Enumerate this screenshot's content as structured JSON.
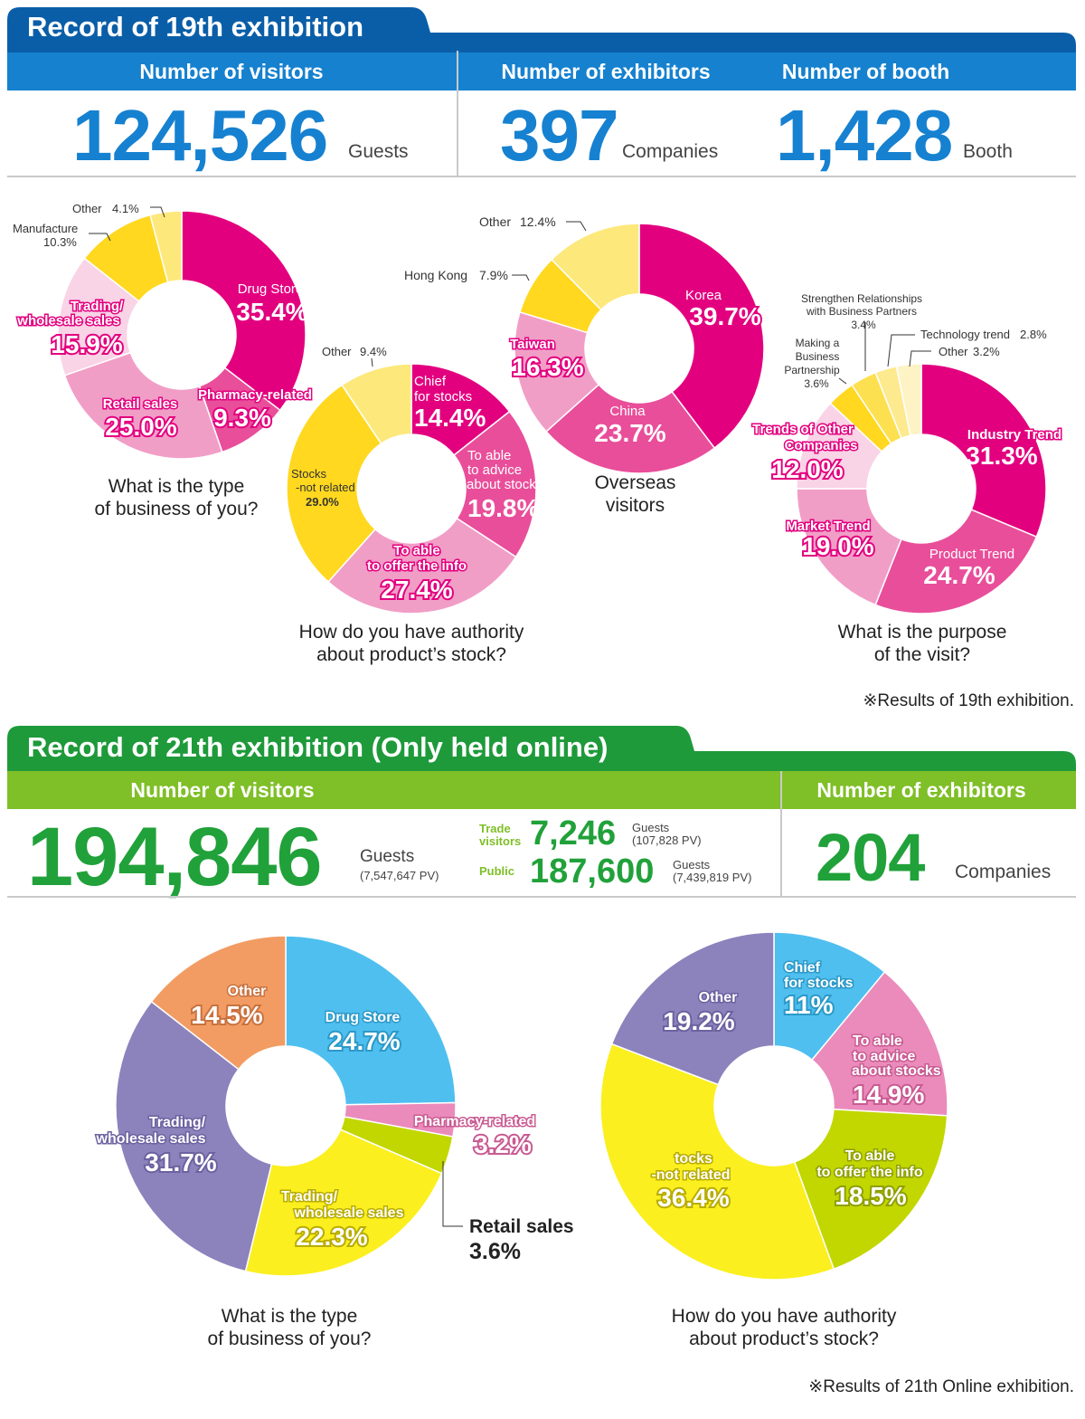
{
  "record19": {
    "title": "Record of 19th exhibition",
    "visitors_header": "Number of visitors",
    "exhibitors_header": "Number of exhibitors",
    "booth_header": "Number of booth",
    "visitors_value": "124,526",
    "visitors_unit": "Guests",
    "exhibitors_value": "397",
    "exhibitors_unit": "Companies",
    "booth_value": "1,428",
    "booth_unit": "Booth",
    "note": "※Results of 19th exhibition."
  },
  "record21": {
    "title": "Record of 21th exhibition (Only held online)",
    "visitors_header": "Number of visitors",
    "exhibitors_header": "Number of exhibitors",
    "visitors_value": "194,846",
    "visitors_unit": "Guests",
    "visitors_pv": "(7,547,647 PV)",
    "trade_label_1": "Trade",
    "trade_label_2": "visitors",
    "trade_value": "7,246",
    "trade_unit": "Guests",
    "trade_pv": "(107,828 PV)",
    "public_label": "Public",
    "public_value": "187,600",
    "public_unit": "Guests",
    "public_pv": "(7,439,819 PV)",
    "exhibitors_value": "204",
    "exhibitors_unit": "Companies",
    "note": "※Results of 21th Online exhibition."
  },
  "colors": {
    "blue_dark": "#0a5ea8",
    "blue": "#1581cf",
    "green_dark": "#1e9a3a",
    "green": "#7fbf27",
    "num_blue": "#1681d0",
    "num_green": "#21a13a"
  },
  "chart_data": [
    {
      "type": "pie",
      "id": "business19",
      "title": "What is the type of business of you?",
      "slices": [
        {
          "label": "Drug Store",
          "value": 35.4,
          "pct": "35.4%",
          "color": "#e3007f"
        },
        {
          "label": "Pharmacy-related",
          "value": 9.3,
          "pct": "9.3%",
          "color": "#e94e9a"
        },
        {
          "label": "Retail sales",
          "value": 25.0,
          "pct": "25.0%",
          "color": "#f19ec7"
        },
        {
          "label": "Trading/ wholesale sales",
          "value": 15.9,
          "pct": "15.9%",
          "color": "#f9d3e6"
        },
        {
          "label": "Manufacture",
          "value": 10.3,
          "pct": "10.3%",
          "color": "#ffd81f"
        },
        {
          "label": "Other",
          "value": 4.1,
          "pct": "4.1%",
          "color": "#fde87b"
        }
      ]
    },
    {
      "type": "pie",
      "id": "authority19",
      "title": "How do you have authority about product’s stock?",
      "slices": [
        {
          "label": "Chief for stocks",
          "value": 14.4,
          "pct": "14.4%",
          "color": "#e3007f"
        },
        {
          "label": "To able to advice about stocks",
          "value": 19.8,
          "pct": "19.8%",
          "color": "#e94e9a"
        },
        {
          "label": "To able to offer the info",
          "value": 27.4,
          "pct": "27.4%",
          "color": "#f19ec7"
        },
        {
          "label": "Stocks -not related",
          "value": 29.0,
          "pct": "29.0%",
          "color": "#ffd81f"
        },
        {
          "label": "Other",
          "value": 9.4,
          "pct": "9.4%",
          "color": "#fde87b"
        }
      ]
    },
    {
      "type": "pie",
      "id": "overseas19",
      "title": "Overseas visitors",
      "slices": [
        {
          "label": "Korea",
          "value": 39.7,
          "pct": "39.7%",
          "color": "#e3007f"
        },
        {
          "label": "China",
          "value": 23.7,
          "pct": "23.7%",
          "color": "#e94e9a"
        },
        {
          "label": "Taiwan",
          "value": 16.3,
          "pct": "16.3%",
          "color": "#f19ec7"
        },
        {
          "label": "Hong Kong",
          "value": 7.9,
          "pct": "7.9%",
          "color": "#ffd81f"
        },
        {
          "label": "Other",
          "value": 12.4,
          "pct": "12.4%",
          "color": "#fde87b"
        }
      ]
    },
    {
      "type": "pie",
      "id": "purpose19",
      "title": "What is the purpose of the visit?",
      "slices": [
        {
          "label": "Industry Trend",
          "value": 31.3,
          "pct": "31.3%",
          "color": "#e3007f"
        },
        {
          "label": "Product Trend",
          "value": 24.7,
          "pct": "24.7%",
          "color": "#e94e9a"
        },
        {
          "label": "Market Trend",
          "value": 19.0,
          "pct": "19.0%",
          "color": "#f19ec7"
        },
        {
          "label": "Trends of Other Companies",
          "value": 12.0,
          "pct": "12.0%",
          "color": "#f9d3e6"
        },
        {
          "label": "Making a Business Partnership",
          "value": 3.6,
          "pct": "3.6%",
          "color": "#ffd81f"
        },
        {
          "label": "Strengthen Relationships with Business Partners",
          "value": 3.4,
          "pct": "3.4%",
          "color": "#fde050"
        },
        {
          "label": "Technology trend",
          "value": 2.8,
          "pct": "2.8%",
          "color": "#fdea8f"
        },
        {
          "label": "Other",
          "value": 3.2,
          "pct": "3.2%",
          "color": "#fef3c4"
        }
      ]
    },
    {
      "type": "pie",
      "id": "business21",
      "title": "What is the type of business of you?",
      "slices": [
        {
          "label": "Drug Store",
          "value": 24.7,
          "pct": "24.7%",
          "color": "#4fbfef"
        },
        {
          "label": "Pharmacy-related",
          "value": 3.2,
          "pct": "3.2%",
          "color": "#ea8bbb"
        },
        {
          "label": "Retail sales",
          "value": 3.6,
          "pct": "3.6%",
          "color": "#c2d600"
        },
        {
          "label": "Trading/ wholesale sales",
          "value": 22.3,
          "pct": "22.3%",
          "color": "#fbef1f"
        },
        {
          "label": "Trading/ wholesale sales",
          "value": 31.7,
          "pct": "31.7%",
          "color": "#8c82bc"
        },
        {
          "label": "Other",
          "value": 14.5,
          "pct": "14.5%",
          "color": "#f29c63"
        }
      ]
    },
    {
      "type": "pie",
      "id": "authority21",
      "title": "How do you have authority about product’s stock?",
      "slices": [
        {
          "label": "Chief for stocks",
          "value": 11,
          "pct": "11%",
          "color": "#4fbfef"
        },
        {
          "label": "To able to advice about stocks",
          "value": 14.9,
          "pct": "14.9%",
          "color": "#ea8bbb"
        },
        {
          "label": "To able to offer the info",
          "value": 18.5,
          "pct": "18.5%",
          "color": "#c2d600"
        },
        {
          "label": "tocks -not related",
          "value": 36.4,
          "pct": "36.4%",
          "color": "#fbef1f"
        },
        {
          "label": "Other",
          "value": 19.2,
          "pct": "19.2%",
          "color": "#8c82bc"
        }
      ]
    }
  ],
  "labels": {
    "b19": {
      "other_lbl": "Other",
      "other_pct": "4.1%",
      "manu_lbl": "Manufacture",
      "manu_pct": "10.3%",
      "trading_l1": "Trading/",
      "trading_l2": "wholesale sales",
      "trading_pct": "15.9%",
      "drug_lbl": "Drug Store",
      "drug_pct": "35.4%",
      "retail_lbl": "Retail sales",
      "retail_pct": "25.0%",
      "pharm_lbl": "Pharmacy-related",
      "pharm_pct": "9.3%",
      "q1": "What is the type",
      "q2": "of business of you?"
    },
    "a19": {
      "other_lbl": "Other",
      "other_pct": "9.4%",
      "chief_l1": "Chief",
      "chief_l2": "for stocks",
      "chief_pct": "14.4%",
      "adv_l1": "To able",
      "adv_l2": "to advice",
      "adv_l3": "about stocks",
      "adv_pct": "19.8%",
      "offer_l1": "To able",
      "offer_l2": "to offer the info",
      "offer_pct": "27.4%",
      "stocks_l1": "Stocks",
      "stocks_l2": "-not related",
      "stocks_pct": "29.0%",
      "q1": "How do you have authority",
      "q2": "about product’s stock?"
    },
    "o19": {
      "other_lbl": "Other",
      "other_pct": "12.4%",
      "hk_lbl": "Hong Kong",
      "hk_pct": "7.9%",
      "korea_lbl": "Korea",
      "korea_pct": "39.7%",
      "taiwan_lbl": "Taiwan",
      "taiwan_pct": "16.3%",
      "china_lbl": "China",
      "china_pct": "23.7%",
      "q1": "Overseas",
      "q2": "visitors"
    },
    "p19": {
      "str_l1": "Strengthen Relationships",
      "str_l2": "with Business Partners",
      "str_pct": "3.4%",
      "tech_lbl": "Technology trend",
      "tech_pct": "2.8%",
      "other_lbl": "Other",
      "other_pct": "3.2%",
      "mk_l1": "Making a",
      "mk_l2": "Business",
      "mk_l3": "Partnership",
      "mk_pct": "3.6%",
      "toc_l1": "Trends of Other",
      "toc_l2": "Companies",
      "toc_pct": "12.0%",
      "ind_lbl": "Industry Trend",
      "ind_pct": "31.3%",
      "mkt_lbl": "Market Trend",
      "mkt_pct": "19.0%",
      "prod_lbl": "Product Trend",
      "prod_pct": "24.7%",
      "q1": "What is the purpose",
      "q2": "of the visit?"
    },
    "b21": {
      "other_lbl": "Other",
      "other_pct": "14.5%",
      "drug_lbl": "Drug Store",
      "drug_pct": "24.7%",
      "pharm_lbl": "Pharmacy-related",
      "pharm_pct": "3.2%",
      "tw_l1": "Trading/",
      "tw_l2": "wholesale sales",
      "tw_pct": "31.7%",
      "tw2_l1": "Trading/",
      "tw2_l2": "wholesale sales",
      "tw2_pct": "22.3%",
      "retail_lbl": "Retail sales",
      "retail_pct": "3.6%",
      "q1": "What is the type",
      "q2": "of business of you?"
    },
    "a21": {
      "other_lbl": "Other",
      "other_pct": "19.2%",
      "chief_l1": "Chief",
      "chief_l2": "for stocks",
      "chief_pct": "11%",
      "adv_l1": "To able",
      "adv_l2": "to advice",
      "adv_l3": "about stocks",
      "adv_pct": "14.9%",
      "offer_l1": "To able",
      "offer_l2": "to offer the info",
      "offer_pct": "18.5%",
      "stocks_l1": "tocks",
      "stocks_l2": "-not related",
      "stocks_pct": "36.4%",
      "q1": "How do you have authority",
      "q2": "about product’s stock?"
    }
  }
}
